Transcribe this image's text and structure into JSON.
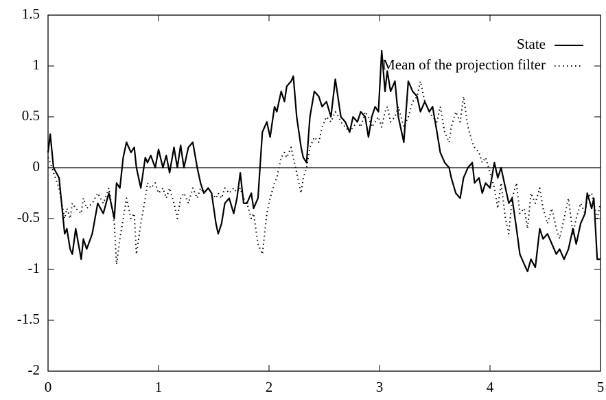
{
  "chart_data": {
    "type": "line",
    "x": [
      0,
      0.02,
      0.05,
      0.1,
      0.15,
      0.17,
      0.2,
      0.22,
      0.25,
      0.3,
      0.32,
      0.35,
      0.4,
      0.45,
      0.5,
      0.55,
      0.6,
      0.62,
      0.65,
      0.68,
      0.71,
      0.75,
      0.78,
      0.8,
      0.84,
      0.88,
      0.9,
      0.93,
      0.97,
      1.0,
      1.04,
      1.07,
      1.1,
      1.14,
      1.17,
      1.2,
      1.23,
      1.27,
      1.31,
      1.35,
      1.38,
      1.41,
      1.45,
      1.48,
      1.52,
      1.54,
      1.57,
      1.6,
      1.64,
      1.68,
      1.71,
      1.74,
      1.77,
      1.8,
      1.84,
      1.86,
      1.9,
      1.94,
      1.98,
      2.01,
      2.05,
      2.07,
      2.11,
      2.14,
      2.16,
      2.2,
      2.22,
      2.25,
      2.29,
      2.31,
      2.34,
      2.37,
      2.41,
      2.45,
      2.48,
      2.52,
      2.56,
      2.6,
      2.63,
      2.65,
      2.69,
      2.73,
      2.76,
      2.8,
      2.83,
      2.87,
      2.9,
      2.93,
      2.96,
      2.99,
      3.02,
      3.05,
      3.07,
      3.1,
      3.14,
      3.17,
      3.22,
      3.26,
      3.3,
      3.34,
      3.37,
      3.41,
      3.45,
      3.48,
      3.52,
      3.55,
      3.59,
      3.63,
      3.65,
      3.69,
      3.73,
      3.76,
      3.8,
      3.84,
      3.86,
      3.9,
      3.93,
      3.96,
      4.0,
      4.04,
      4.07,
      4.1,
      4.14,
      4.17,
      4.2,
      4.24,
      4.27,
      4.31,
      4.34,
      4.37,
      4.41,
      4.45,
      4.48,
      4.52,
      4.56,
      4.6,
      4.63,
      4.67,
      4.71,
      4.75,
      4.78,
      4.82,
      4.86,
      4.88,
      4.92,
      4.94,
      4.97,
      5.0
    ],
    "series": [
      {
        "name": "State",
        "color": "#000000",
        "style": "solid",
        "values": [
          0.15,
          0.33,
          0.0,
          -0.1,
          -0.65,
          -0.6,
          -0.8,
          -0.85,
          -0.6,
          -0.9,
          -0.7,
          -0.8,
          -0.65,
          -0.35,
          -0.45,
          -0.25,
          -0.5,
          -0.15,
          -0.2,
          0.1,
          0.25,
          0.15,
          0.2,
          0.0,
          -0.2,
          0.1,
          0.05,
          0.12,
          0.0,
          0.18,
          0.0,
          0.12,
          -0.05,
          0.2,
          0.0,
          0.22,
          0.0,
          0.2,
          0.25,
          0.0,
          -0.15,
          -0.25,
          -0.2,
          -0.25,
          -0.55,
          -0.65,
          -0.55,
          -0.35,
          -0.3,
          -0.45,
          -0.3,
          -0.05,
          -0.35,
          -0.35,
          -0.25,
          -0.4,
          -0.3,
          0.35,
          0.45,
          0.3,
          0.6,
          0.55,
          0.75,
          0.65,
          0.8,
          0.85,
          0.9,
          0.5,
          0.2,
          0.1,
          0.05,
          0.5,
          0.75,
          0.7,
          0.6,
          0.65,
          0.5,
          0.87,
          0.65,
          0.5,
          0.45,
          0.35,
          0.5,
          0.45,
          0.55,
          0.5,
          0.3,
          0.5,
          0.6,
          0.55,
          1.15,
          0.75,
          0.95,
          0.75,
          0.85,
          0.5,
          0.25,
          0.85,
          0.75,
          0.7,
          0.55,
          0.65,
          0.55,
          0.6,
          0.35,
          0.15,
          0.05,
          0.0,
          -0.1,
          -0.25,
          -0.3,
          -0.1,
          0.0,
          0.05,
          -0.15,
          -0.1,
          -0.25,
          -0.15,
          -0.2,
          0.05,
          -0.1,
          0.0,
          -0.2,
          -0.35,
          -0.3,
          -0.6,
          -0.85,
          -0.95,
          -1.02,
          -0.9,
          -0.98,
          -0.6,
          -0.7,
          -0.65,
          -0.75,
          -0.85,
          -0.8,
          -0.9,
          -0.8,
          -0.6,
          -0.75,
          -0.55,
          -0.45,
          -0.25,
          -0.4,
          -0.3,
          -0.9,
          -0.9
        ]
      },
      {
        "name": "Mean of the projection filter",
        "color": "#000000",
        "style": "dotted",
        "values": [
          0.1,
          0.05,
          -0.05,
          -0.2,
          -0.5,
          -0.4,
          -0.5,
          -0.35,
          -0.4,
          -0.45,
          -0.3,
          -0.4,
          -0.35,
          -0.25,
          -0.35,
          -0.2,
          -0.55,
          -0.95,
          -0.7,
          -0.5,
          -0.3,
          -0.5,
          -0.45,
          -0.85,
          -0.55,
          -0.3,
          -0.15,
          -0.2,
          -0.15,
          -0.25,
          -0.2,
          -0.3,
          -0.2,
          -0.35,
          -0.5,
          -0.3,
          -0.25,
          -0.35,
          -0.2,
          -0.3,
          -0.2,
          -0.25,
          -0.2,
          -0.25,
          -0.3,
          -0.25,
          -0.3,
          -0.2,
          -0.25,
          -0.2,
          -0.25,
          -0.2,
          -0.3,
          -0.35,
          -0.5,
          -0.45,
          -0.75,
          -0.85,
          -0.45,
          -0.3,
          -0.15,
          -0.1,
          0.1,
          0.15,
          0.1,
          0.2,
          0.1,
          -0.05,
          -0.25,
          -0.1,
          0.0,
          0.2,
          0.3,
          0.25,
          0.4,
          0.5,
          0.45,
          0.55,
          0.5,
          0.45,
          0.4,
          0.35,
          0.4,
          0.45,
          0.4,
          0.55,
          0.5,
          0.4,
          0.45,
          0.5,
          0.4,
          0.55,
          0.6,
          0.45,
          0.5,
          0.6,
          0.4,
          0.5,
          0.65,
          0.7,
          0.85,
          0.65,
          0.55,
          0.5,
          0.45,
          0.6,
          0.35,
          0.25,
          0.4,
          0.55,
          0.45,
          0.7,
          0.4,
          0.25,
          0.2,
          0.15,
          0.05,
          0.1,
          -0.05,
          -0.2,
          -0.4,
          -0.15,
          -0.5,
          -0.65,
          -0.3,
          -0.15,
          -0.45,
          -0.4,
          -0.6,
          -0.25,
          -0.35,
          -0.2,
          -0.4,
          -0.55,
          -0.4,
          -0.6,
          -0.7,
          -0.5,
          -0.3,
          -0.65,
          -0.5,
          -0.35,
          -0.45,
          -0.3,
          -0.25,
          -0.35,
          -0.5,
          -0.35
        ]
      }
    ],
    "xlim": [
      0,
      5
    ],
    "xticks": [
      0,
      1,
      2,
      3,
      4,
      5
    ],
    "ylim": [
      -2,
      1.5
    ],
    "yticks": [
      -2,
      -1.5,
      -1,
      -0.5,
      0,
      0.5,
      1,
      1.5
    ],
    "zeroaxis": true,
    "legend": "top-right"
  }
}
